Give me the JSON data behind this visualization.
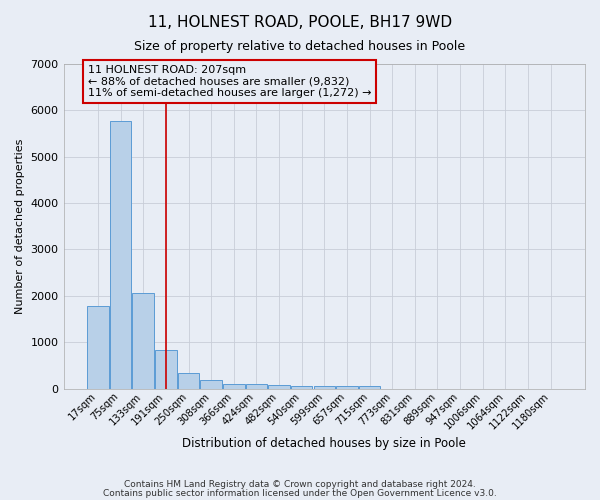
{
  "title": "11, HOLNEST ROAD, POOLE, BH17 9WD",
  "subtitle": "Size of property relative to detached houses in Poole",
  "xlabel": "Distribution of detached houses by size in Poole",
  "ylabel": "Number of detached properties",
  "bar_color": "#b8d0e8",
  "bar_edge_color": "#5b9bd5",
  "bg_color": "#e8edf5",
  "categories": [
    "17sqm",
    "75sqm",
    "133sqm",
    "191sqm",
    "250sqm",
    "308sqm",
    "366sqm",
    "424sqm",
    "482sqm",
    "540sqm",
    "599sqm",
    "657sqm",
    "715sqm",
    "773sqm",
    "831sqm",
    "889sqm",
    "947sqm",
    "1006sqm",
    "1064sqm",
    "1122sqm",
    "1180sqm"
  ],
  "values": [
    1780,
    5760,
    2050,
    830,
    330,
    185,
    100,
    95,
    70,
    50,
    50,
    50,
    55,
    0,
    0,
    0,
    0,
    0,
    0,
    0,
    0
  ],
  "red_line_x": 3.0,
  "annotation_text": "11 HOLNEST ROAD: 207sqm\n← 88% of detached houses are smaller (9,832)\n11% of semi-detached houses are larger (1,272) →",
  "ylim": [
    0,
    7000
  ],
  "footnote1": "Contains HM Land Registry data © Crown copyright and database right 2024.",
  "footnote2": "Contains public sector information licensed under the Open Government Licence v3.0."
}
